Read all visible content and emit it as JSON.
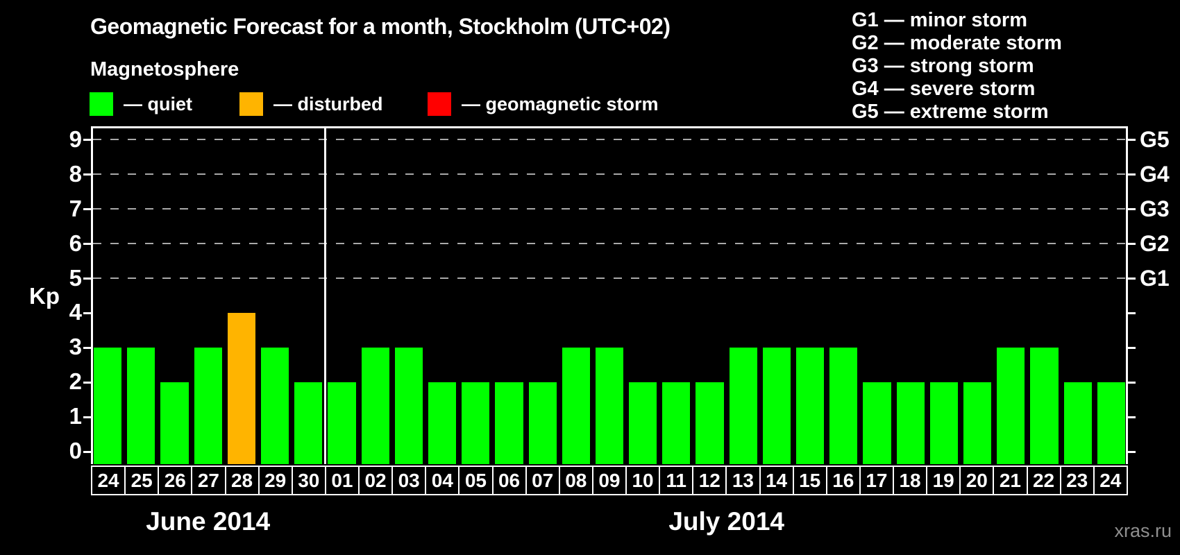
{
  "title": "Geomagnetic Forecast for a month, Stockholm (UTC+02)",
  "subtitle": "Magnetosphere",
  "watermark": "xras.ru",
  "legend": {
    "items": [
      {
        "name": "quiet",
        "label": "— quiet",
        "color": "#00ff00",
        "x": 0
      },
      {
        "name": "disturbed",
        "label": "— disturbed",
        "color": "#ffb400",
        "x": 216
      },
      {
        "name": "storm",
        "label": "— geomagnetic storm",
        "color": "#ff0000",
        "x": 487
      }
    ]
  },
  "storm_scale_legend": [
    "G1 — minor storm",
    "G2 — moderate storm",
    "G3 — strong storm",
    "G4 — severe storm",
    "G5 — extreme storm"
  ],
  "chart_data": {
    "type": "bar",
    "title": "Geomagnetic Forecast for a month, Stockholm (UTC+02)",
    "ylabel": "Kp",
    "ylim": [
      0,
      9
    ],
    "yticks": [
      0,
      1,
      2,
      3,
      4,
      5,
      6,
      7,
      8,
      9
    ],
    "gridlines_at_kp": [
      5,
      6,
      7,
      8,
      9
    ],
    "grid": true,
    "right_axis_labels": [
      {
        "label": "G1",
        "kp": 5
      },
      {
        "label": "G2",
        "kp": 6
      },
      {
        "label": "G3",
        "kp": 7
      },
      {
        "label": "G4",
        "kp": 8
      },
      {
        "label": "G5",
        "kp": 9
      }
    ],
    "months": [
      {
        "label": "June 2014",
        "days": 7
      },
      {
        "label": "July 2014",
        "days": 24
      }
    ],
    "categories": [
      "24",
      "25",
      "26",
      "27",
      "28",
      "29",
      "30",
      "01",
      "02",
      "03",
      "04",
      "05",
      "06",
      "07",
      "08",
      "09",
      "10",
      "11",
      "12",
      "13",
      "14",
      "15",
      "16",
      "17",
      "18",
      "19",
      "20",
      "21",
      "22",
      "23",
      "24"
    ],
    "values": [
      3,
      3,
      2,
      3,
      4,
      3,
      2,
      2,
      3,
      3,
      2,
      2,
      2,
      2,
      3,
      3,
      2,
      2,
      2,
      3,
      3,
      3,
      3,
      2,
      2,
      2,
      2,
      3,
      3,
      2,
      2
    ],
    "statuses": [
      "quiet",
      "quiet",
      "quiet",
      "quiet",
      "disturbed",
      "quiet",
      "quiet",
      "quiet",
      "quiet",
      "quiet",
      "quiet",
      "quiet",
      "quiet",
      "quiet",
      "quiet",
      "quiet",
      "quiet",
      "quiet",
      "quiet",
      "quiet",
      "quiet",
      "quiet",
      "quiet",
      "quiet",
      "quiet",
      "quiet",
      "quiet",
      "quiet",
      "quiet",
      "quiet",
      "quiet"
    ],
    "colors": {
      "quiet": "#00ff00",
      "disturbed": "#ffb400",
      "storm": "#ff0000"
    }
  }
}
